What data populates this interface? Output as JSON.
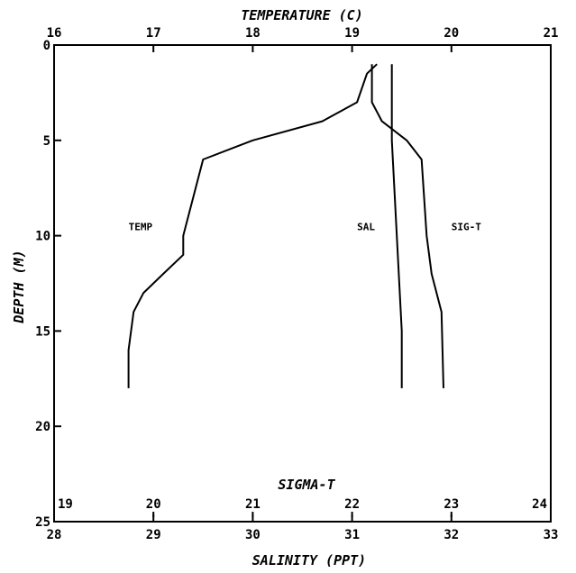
{
  "chart_data": {
    "type": "line",
    "top_axis": {
      "label": "TEMPERATURE (C)",
      "range": [
        16,
        21
      ],
      "ticks": [
        "16",
        "17",
        "18",
        "19",
        "20",
        "21"
      ]
    },
    "bottom_axis": {
      "label": "SALINITY (PPT)",
      "range": [
        28,
        33
      ],
      "ticks": [
        "28",
        "29",
        "30",
        "31",
        "32",
        "33"
      ]
    },
    "inner_axis": {
      "label": "SIGMA-T",
      "range": [
        19,
        24
      ],
      "ticks": [
        "19",
        "20",
        "21",
        "22",
        "23",
        "24"
      ]
    },
    "y_axis": {
      "label": "DEPTH (M)",
      "range": [
        0,
        25
      ],
      "inverted": true,
      "ticks": [
        "0",
        "5",
        "10",
        "15",
        "20",
        "25"
      ]
    },
    "series": [
      {
        "name": "TEMP",
        "axis": "top",
        "points": [
          [
            19.25,
            1
          ],
          [
            19.15,
            1.5
          ],
          [
            19.05,
            3
          ],
          [
            18.7,
            4
          ],
          [
            18.0,
            5
          ],
          [
            17.5,
            6
          ],
          [
            17.3,
            10
          ],
          [
            17.3,
            11
          ],
          [
            17.1,
            12
          ],
          [
            16.9,
            13
          ],
          [
            16.8,
            14
          ],
          [
            16.75,
            16
          ],
          [
            16.75,
            18
          ]
        ]
      },
      {
        "name": "SAL",
        "axis": "bottom",
        "points": [
          [
            31.4,
            1
          ],
          [
            31.4,
            5
          ],
          [
            31.45,
            10
          ],
          [
            31.5,
            15
          ],
          [
            31.5,
            18
          ]
        ]
      },
      {
        "name": "SIG-T",
        "axis": "inner",
        "points": [
          [
            22.2,
            1
          ],
          [
            22.2,
            3
          ],
          [
            22.3,
            4
          ],
          [
            22.55,
            5
          ],
          [
            22.7,
            6
          ],
          [
            22.75,
            10
          ],
          [
            22.8,
            12
          ],
          [
            22.9,
            14
          ],
          [
            22.92,
            18
          ]
        ]
      }
    ],
    "series_labels": [
      {
        "text": "TEMP",
        "x_axis": "top",
        "x": 16.75,
        "depth": 9.7
      },
      {
        "text": "SAL",
        "x_axis": "bottom",
        "x": 31.05,
        "depth": 9.7
      },
      {
        "text": "SIG-T",
        "x_axis": "bottom",
        "x": 32.0,
        "depth": 9.7
      }
    ],
    "grid": false
  }
}
